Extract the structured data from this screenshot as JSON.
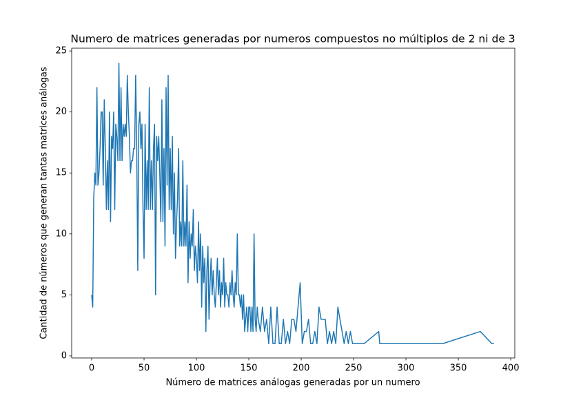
{
  "chart_data": {
    "type": "line",
    "title": "Numero de matrices generadas por numeros compuestos no múltiplos de 2 ni de 3",
    "xlabel": "Número de matrices análogas generadas por un numero",
    "ylabel": "Cantidad de números que generan tantas matrices análogas",
    "color": "#1f77b4",
    "xlim": [
      -19.1,
      403.9
    ],
    "ylim": [
      -0.17,
      25.23
    ],
    "xticks": [
      0,
      50,
      100,
      150,
      200,
      250,
      300,
      350,
      400
    ],
    "yticks": [
      0,
      5,
      10,
      15,
      20,
      25
    ],
    "x": [
      0,
      1,
      2,
      3,
      4,
      5,
      6,
      7,
      8,
      9,
      10,
      11,
      12,
      13,
      14,
      15,
      16,
      17,
      18,
      19,
      20,
      21,
      22,
      23,
      24,
      25,
      26,
      27,
      28,
      29,
      30,
      31,
      32,
      33,
      34,
      35,
      36,
      37,
      38,
      39,
      40,
      41,
      42,
      43,
      44,
      45,
      46,
      47,
      48,
      49,
      50,
      51,
      52,
      53,
      54,
      55,
      56,
      57,
      58,
      59,
      60,
      61,
      62,
      63,
      64,
      65,
      66,
      67,
      68,
      69,
      70,
      71,
      72,
      73,
      74,
      75,
      76,
      77,
      78,
      79,
      80,
      81,
      82,
      83,
      84,
      85,
      86,
      87,
      88,
      89,
      90,
      91,
      92,
      93,
      94,
      95,
      96,
      97,
      98,
      99,
      100,
      101,
      102,
      103,
      104,
      105,
      106,
      107,
      108,
      109,
      110,
      111,
      112,
      113,
      114,
      115,
      116,
      117,
      118,
      119,
      120,
      121,
      122,
      123,
      124,
      125,
      126,
      127,
      128,
      129,
      130,
      131,
      132,
      133,
      134,
      135,
      136,
      137,
      138,
      139,
      140,
      141,
      142,
      143,
      144,
      145,
      146,
      147,
      148,
      149,
      150,
      151,
      152,
      153,
      154,
      155,
      156,
      157,
      158,
      159,
      161,
      163,
      165,
      167,
      169,
      171,
      173,
      175,
      177,
      179,
      181,
      183,
      185,
      187,
      189,
      191,
      193,
      195,
      197,
      199,
      201,
      203,
      205,
      207,
      209,
      211,
      213,
      215,
      217,
      219,
      221,
      223,
      225,
      227,
      229,
      231,
      233,
      235,
      237,
      239,
      241,
      243,
      245,
      247,
      249,
      251,
      260,
      274,
      275,
      335,
      371,
      382,
      384
    ],
    "values": [
      5,
      4,
      13,
      15,
      14,
      22,
      14,
      15,
      17,
      20,
      20,
      14,
      21,
      17,
      12,
      16,
      12,
      20,
      11,
      18,
      17,
      20,
      12,
      19,
      18,
      16,
      24,
      16,
      22,
      16,
      19,
      18,
      19,
      18,
      23,
      20,
      18,
      15,
      16,
      16,
      17,
      17,
      23,
      17,
      7,
      19,
      20,
      17,
      19,
      12,
      8,
      19,
      12,
      16,
      12,
      22,
      12,
      16,
      12,
      17,
      19,
      5,
      18,
      16,
      18,
      15,
      11,
      21,
      11,
      17,
      9,
      22,
      14,
      23,
      12,
      17,
      12,
      18,
      10,
      15,
      8,
      11,
      13,
      17,
      9,
      11,
      9,
      16,
      9,
      11,
      9,
      14,
      6,
      11,
      8,
      10,
      9,
      12,
      7,
      9,
      8,
      6,
      11,
      7,
      10,
      4,
      9,
      6,
      8,
      2,
      7,
      9,
      3,
      6,
      8,
      5,
      7,
      5,
      4,
      6,
      8,
      5,
      7,
      4,
      6,
      5,
      8,
      4,
      6,
      5,
      5,
      4,
      6,
      5,
      7,
      5,
      4,
      6,
      5,
      10,
      5,
      5,
      4,
      5,
      3,
      5,
      2,
      3,
      4,
      2,
      4,
      4,
      2,
      4,
      2,
      10,
      3,
      2,
      4,
      3,
      2,
      4,
      2,
      3,
      1,
      4,
      1,
      1,
      4,
      1,
      1,
      3,
      1,
      2,
      1,
      3,
      3,
      2,
      4,
      6,
      1,
      2,
      2,
      3,
      1,
      1,
      2,
      1,
      4,
      3,
      3,
      3,
      1,
      2,
      1,
      2,
      1,
      4,
      3,
      2,
      1,
      2,
      1,
      2,
      1,
      1,
      1,
      2,
      1,
      1,
      2,
      1,
      1
    ]
  }
}
